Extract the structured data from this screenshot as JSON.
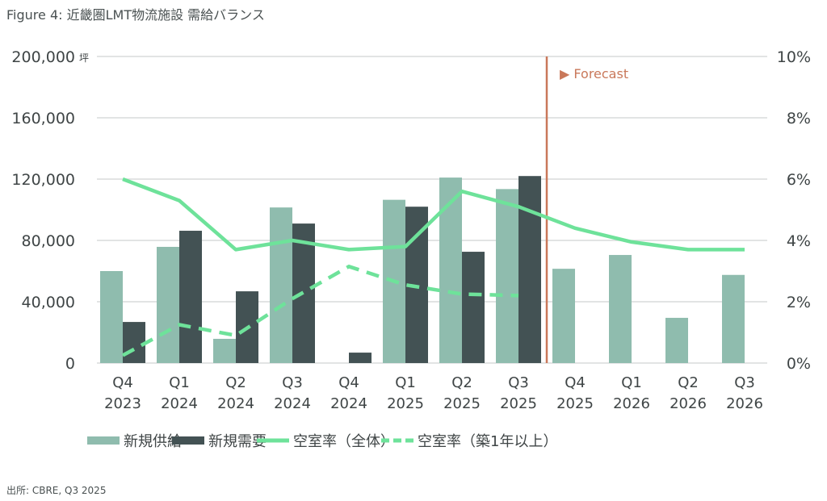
{
  "chart_data": {
    "type": "bar",
    "title": "Figure 4: 近畿圏LMT物流施設 需給バランス",
    "source": "出所: CBRE, Q3 2025",
    "y_unit": "坪",
    "ylim": [
      0,
      200000
    ],
    "y2lim": [
      0,
      10
    ],
    "yticks": [
      "0",
      "40,000",
      "80,000",
      "120,000",
      "160,000",
      "200,000"
    ],
    "y2ticks": [
      "0%",
      "2%",
      "4%",
      "6%",
      "8%",
      "10%"
    ],
    "categories": [
      [
        "Q4",
        "2023"
      ],
      [
        "Q1",
        "2024"
      ],
      [
        "Q2",
        "2024"
      ],
      [
        "Q3",
        "2024"
      ],
      [
        "Q4",
        "2024"
      ],
      [
        "Q1",
        "2025"
      ],
      [
        "Q2",
        "2025"
      ],
      [
        "Q3",
        "2025"
      ],
      [
        "Q4",
        "2025"
      ],
      [
        "Q1",
        "2026"
      ],
      [
        "Q2",
        "2026"
      ],
      [
        "Q3",
        "2026"
      ]
    ],
    "forecast_label": "▶ Forecast",
    "forecast_after_index": 7,
    "series": [
      {
        "name": "新規供給",
        "type": "bar",
        "color": "#8fbcae",
        "values": [
          60000,
          75800,
          15800,
          101500,
          0,
          106500,
          121000,
          113500,
          61500,
          70500,
          29500,
          57500
        ]
      },
      {
        "name": "新規需要",
        "type": "bar",
        "color": "#435254",
        "values": [
          26800,
          86300,
          46800,
          91000,
          6800,
          102000,
          72600,
          122000,
          null,
          null,
          null,
          null
        ]
      },
      {
        "name": "空室率（全体）",
        "type": "line",
        "axis": "right",
        "color": "#6ee29a",
        "values": [
          6.0,
          5.3,
          3.7,
          4.0,
          3.7,
          3.8,
          5.6,
          5.1,
          4.4,
          3.95,
          3.7,
          3.7
        ]
      },
      {
        "name": "空室率（築1年以上）",
        "type": "line",
        "dashed": true,
        "axis": "right",
        "color": "#6ee29a",
        "values": [
          0.25,
          1.25,
          0.9,
          2.1,
          3.15,
          2.55,
          2.25,
          2.2,
          null,
          null,
          null,
          null
        ]
      }
    ],
    "colors": {
      "grid": "#d9dcdc",
      "text": "#3f4546",
      "forecast": "#c9785a"
    }
  }
}
